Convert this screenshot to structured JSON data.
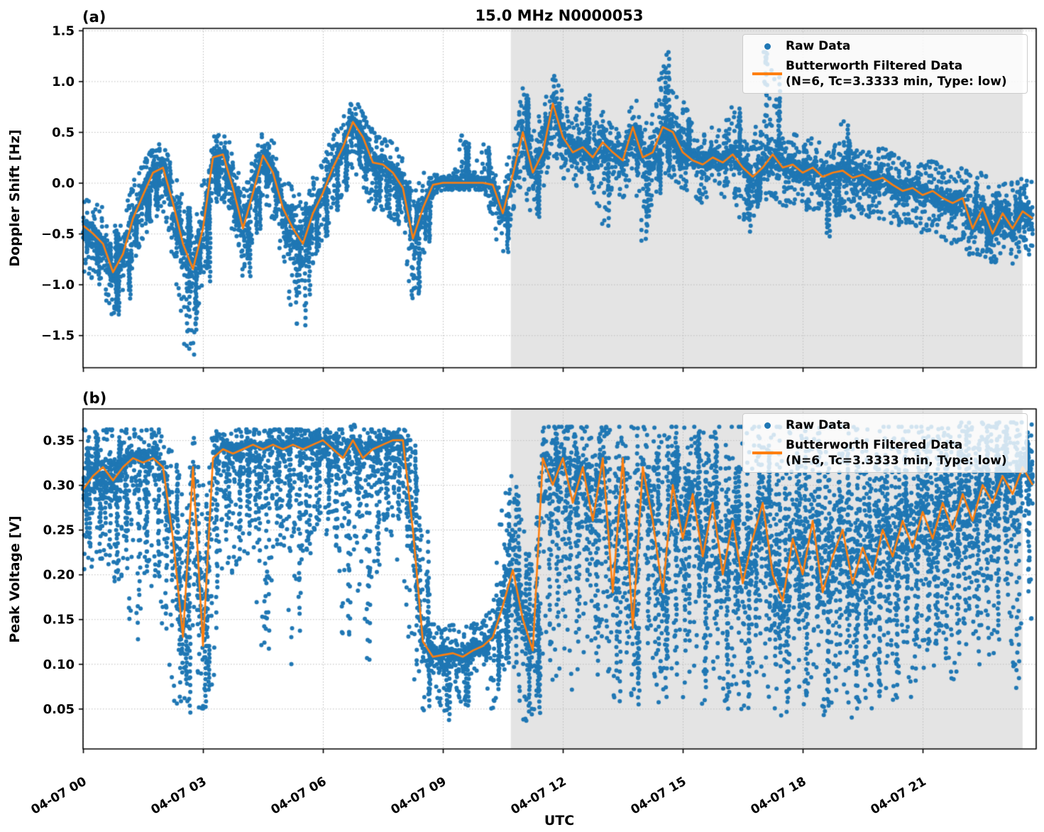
{
  "figure": {
    "title": "15.0 MHz N0000053",
    "xlabel": "UTC",
    "panel_a": {
      "label": "(a)",
      "ylabel": "Doppler Shift [Hz]"
    },
    "panel_b": {
      "label": "(b)",
      "ylabel": "Peak Voltage [V]"
    }
  },
  "legend": {
    "raw_label": "Raw Data",
    "filtered_label_line1": "Butterworth Filtered Data",
    "filtered_label_line2": "(N=6, Tc=3.3333 min, Type: low)"
  },
  "colors": {
    "raw": "#1f77b4",
    "filtered": "#ff7f0e",
    "shaded_region": "#e4e4e4",
    "grid": "#bdbdbd",
    "spine": "#000000"
  },
  "chart_data": [
    {
      "type": "scatter",
      "panel": "(a)",
      "title": "15.0 MHz N0000053",
      "ylabel": "Doppler Shift [Hz]",
      "xlabel": "UTC",
      "ylim": [
        -1.82,
        1.52
      ],
      "xlim_hours": [
        0,
        23.84
      ],
      "grid": true,
      "legend_position": "upper right",
      "xticks": {
        "hours": [
          0,
          3,
          6,
          9,
          12,
          15,
          18,
          21
        ],
        "labels": [
          "04-07 00",
          "04-07 03",
          "04-07 06",
          "04-07 09",
          "04-07 12",
          "04-07 15",
          "04-07 18",
          "04-07 21"
        ]
      },
      "yticks": {
        "values": [
          1.5,
          1.0,
          0.5,
          0.0,
          -0.5,
          -1.0,
          -1.5
        ],
        "labels": [
          "1.5",
          "1.0",
          "0.5",
          "0.0",
          "−0.5",
          "−1.0",
          "−1.5"
        ]
      },
      "shaded_region_hours": [
        10.7,
        23.5
      ],
      "x_hours": {
        "start": 0,
        "step": 0.25,
        "count": 96
      },
      "series": [
        {
          "name": "Raw Data",
          "style": "scatter",
          "color": "#1f77b4",
          "envelope_low": [
            -0.85,
            -0.95,
            -1.05,
            -1.3,
            -1.15,
            -0.8,
            -0.55,
            -0.35,
            -0.3,
            -0.7,
            -1.55,
            -1.7,
            -1.0,
            -0.2,
            -0.15,
            -0.5,
            -0.95,
            -0.55,
            -0.15,
            -0.35,
            -0.75,
            -1.35,
            -1.45,
            -0.8,
            -0.55,
            -0.3,
            -0.1,
            0.15,
            0.0,
            -0.25,
            -0.3,
            -0.35,
            -0.5,
            -1.2,
            -0.7,
            -0.12,
            -0.07,
            -0.07,
            -0.07,
            -0.07,
            -0.07,
            -0.4,
            -0.75,
            -0.3,
            0.05,
            -0.4,
            -0.05,
            0.3,
            0.05,
            -0.05,
            0.0,
            -0.1,
            -0.45,
            -0.05,
            -0.15,
            0.1,
            -0.75,
            -0.15,
            0.1,
            0.05,
            -0.05,
            -0.15,
            -0.2,
            -0.1,
            -0.15,
            -0.1,
            -0.5,
            -0.35,
            -0.2,
            -0.1,
            -0.25,
            -0.2,
            -0.3,
            -0.25,
            -0.55,
            -0.35,
            -0.25,
            -0.35,
            -0.3,
            -0.35,
            -0.35,
            -0.4,
            -0.45,
            -0.4,
            -0.5,
            -0.45,
            -0.55,
            -0.6,
            -0.55,
            -0.8,
            -0.7,
            -0.85,
            -0.65,
            -0.8,
            -0.65,
            -0.75
          ],
          "envelope_high": [
            -0.15,
            -0.2,
            -0.25,
            -0.45,
            -0.3,
            0.0,
            0.2,
            0.35,
            0.4,
            0.15,
            -0.15,
            -0.4,
            0.0,
            0.45,
            0.5,
            0.3,
            -0.05,
            0.25,
            0.5,
            0.4,
            0.1,
            -0.05,
            -0.15,
            0.05,
            0.2,
            0.45,
            0.6,
            0.85,
            0.7,
            0.5,
            0.45,
            0.4,
            0.25,
            -0.1,
            0.1,
            0.08,
            0.07,
            0.07,
            0.55,
            0.07,
            0.45,
            0.1,
            0.05,
            0.4,
            1.0,
            0.45,
            0.75,
            1.1,
            0.85,
            0.6,
            0.95,
            0.55,
            0.75,
            0.6,
            0.5,
            0.9,
            0.55,
            0.7,
            1.38,
            0.9,
            0.85,
            0.6,
            0.45,
            0.55,
            0.5,
            0.75,
            0.45,
            0.35,
            1.36,
            1.05,
            0.45,
            0.5,
            0.4,
            0.45,
            0.35,
            0.3,
            0.65,
            0.3,
            0.35,
            0.3,
            0.35,
            0.28,
            0.22,
            0.25,
            0.18,
            0.22,
            0.15,
            0.1,
            0.15,
            0.05,
            0.1,
            0.0,
            0.05,
            0.0,
            0.05,
            0.0
          ]
        },
        {
          "name": "Butterworth Filtered Data (N=6, Tc=3.3333 min, Type: low)",
          "style": "line",
          "color": "#ff7f0e",
          "values": [
            -0.42,
            -0.5,
            -0.6,
            -0.88,
            -0.7,
            -0.35,
            -0.12,
            0.1,
            0.15,
            -0.2,
            -0.6,
            -0.85,
            -0.45,
            0.25,
            0.28,
            -0.05,
            -0.45,
            -0.1,
            0.27,
            0.1,
            -0.25,
            -0.45,
            -0.6,
            -0.3,
            -0.1,
            0.15,
            0.35,
            0.6,
            0.45,
            0.2,
            0.18,
            0.1,
            -0.05,
            -0.55,
            -0.25,
            -0.02,
            0.0,
            0.0,
            0.0,
            0.0,
            0.0,
            -0.02,
            -0.3,
            0.08,
            0.5,
            0.1,
            0.3,
            0.78,
            0.45,
            0.3,
            0.35,
            0.25,
            0.4,
            0.3,
            0.22,
            0.55,
            0.25,
            0.3,
            0.55,
            0.5,
            0.3,
            0.22,
            0.18,
            0.25,
            0.2,
            0.28,
            0.15,
            0.06,
            0.15,
            0.28,
            0.15,
            0.18,
            0.1,
            0.15,
            0.06,
            0.1,
            0.12,
            0.05,
            0.08,
            0.02,
            0.05,
            -0.02,
            -0.08,
            -0.05,
            -0.12,
            -0.08,
            -0.15,
            -0.2,
            -0.15,
            -0.45,
            -0.25,
            -0.5,
            -0.3,
            -0.45,
            -0.28,
            -0.35
          ]
        }
      ]
    },
    {
      "type": "scatter",
      "panel": "(b)",
      "title": "15.0 MHz N0000053",
      "ylabel": "Peak Voltage [V]",
      "xlabel": "UTC",
      "ylim": [
        0.005,
        0.385
      ],
      "xlim_hours": [
        0,
        23.84
      ],
      "grid": true,
      "legend_position": "upper right",
      "xticks": {
        "hours": [
          0,
          3,
          6,
          9,
          12,
          15,
          18,
          21
        ],
        "labels": [
          "04-07 00",
          "04-07 03",
          "04-07 06",
          "04-07 09",
          "04-07 12",
          "04-07 15",
          "04-07 18",
          "04-07 21"
        ]
      },
      "yticks": {
        "values": [
          0.35,
          0.3,
          0.25,
          0.2,
          0.15,
          0.1,
          0.05
        ],
        "labels": [
          "0.35",
          "0.30",
          "0.25",
          "0.20",
          "0.15",
          "0.10",
          "0.05"
        ]
      },
      "shaded_region_hours": [
        10.7,
        23.5
      ],
      "x_hours": {
        "start": 0,
        "step": 0.25,
        "count": 96
      },
      "series": [
        {
          "name": "Raw Data",
          "style": "scatter",
          "color": "#1f77b4",
          "envelope_low": [
            0.2,
            0.21,
            0.22,
            0.19,
            0.2,
            0.12,
            0.2,
            0.18,
            0.14,
            0.06,
            0.045,
            0.05,
            0.04,
            0.08,
            0.22,
            0.2,
            0.23,
            0.21,
            0.1,
            0.22,
            0.24,
            0.07,
            0.22,
            0.25,
            0.26,
            0.22,
            0.12,
            0.26,
            0.1,
            0.2,
            0.26,
            0.24,
            0.18,
            0.08,
            0.045,
            0.085,
            0.03,
            0.088,
            0.05,
            0.088,
            0.09,
            0.05,
            0.09,
            0.1,
            0.03,
            0.045,
            0.1,
            0.06,
            0.12,
            0.07,
            0.12,
            0.06,
            0.14,
            0.05,
            0.13,
            0.05,
            0.12,
            0.07,
            0.05,
            0.1,
            0.06,
            0.1,
            0.05,
            0.09,
            0.05,
            0.08,
            0.04,
            0.07,
            0.1,
            0.05,
            0.04,
            0.08,
            0.05,
            0.09,
            0.04,
            0.06,
            0.08,
            0.04,
            0.06,
            0.05,
            0.08,
            0.05,
            0.09,
            0.06,
            0.1,
            0.07,
            0.11,
            0.08,
            0.12,
            0.09,
            0.14,
            0.1,
            0.15,
            0.07,
            0.17,
            0.15
          ],
          "envelope_high": [
            0.362,
            0.362,
            0.362,
            0.362,
            0.362,
            0.362,
            0.362,
            0.362,
            0.362,
            0.33,
            0.3,
            0.36,
            0.3,
            0.36,
            0.362,
            0.362,
            0.362,
            0.362,
            0.362,
            0.362,
            0.362,
            0.362,
            0.362,
            0.362,
            0.362,
            0.362,
            0.362,
            0.368,
            0.362,
            0.362,
            0.362,
            0.362,
            0.362,
            0.36,
            0.25,
            0.145,
            0.14,
            0.145,
            0.14,
            0.145,
            0.15,
            0.16,
            0.3,
            0.31,
            0.25,
            0.2,
            0.365,
            0.365,
            0.365,
            0.365,
            0.365,
            0.365,
            0.365,
            0.365,
            0.365,
            0.365,
            0.365,
            0.365,
            0.365,
            0.365,
            0.365,
            0.365,
            0.365,
            0.365,
            0.365,
            0.365,
            0.365,
            0.365,
            0.365,
            0.365,
            0.365,
            0.365,
            0.365,
            0.365,
            0.365,
            0.365,
            0.365,
            0.365,
            0.365,
            0.365,
            0.365,
            0.365,
            0.365,
            0.365,
            0.365,
            0.365,
            0.365,
            0.365,
            0.37,
            0.37,
            0.37,
            0.37,
            0.37,
            0.37,
            0.37,
            0.37
          ]
        },
        {
          "name": "Butterworth Filtered Data (N=6, Tc=3.3333 min, Type: low)",
          "style": "line",
          "color": "#ff7f0e",
          "values": [
            0.295,
            0.31,
            0.32,
            0.305,
            0.32,
            0.33,
            0.325,
            0.33,
            0.32,
            0.24,
            0.13,
            0.32,
            0.12,
            0.33,
            0.34,
            0.335,
            0.34,
            0.345,
            0.34,
            0.345,
            0.34,
            0.345,
            0.34,
            0.345,
            0.35,
            0.34,
            0.33,
            0.35,
            0.33,
            0.34,
            0.345,
            0.35,
            0.35,
            0.25,
            0.125,
            0.108,
            0.11,
            0.112,
            0.108,
            0.115,
            0.12,
            0.13,
            0.165,
            0.205,
            0.15,
            0.115,
            0.33,
            0.3,
            0.33,
            0.28,
            0.32,
            0.26,
            0.33,
            0.18,
            0.33,
            0.14,
            0.32,
            0.26,
            0.18,
            0.3,
            0.24,
            0.29,
            0.22,
            0.28,
            0.2,
            0.26,
            0.19,
            0.24,
            0.28,
            0.2,
            0.17,
            0.24,
            0.2,
            0.26,
            0.18,
            0.22,
            0.25,
            0.19,
            0.23,
            0.2,
            0.25,
            0.22,
            0.26,
            0.23,
            0.27,
            0.24,
            0.28,
            0.25,
            0.29,
            0.26,
            0.3,
            0.28,
            0.31,
            0.29,
            0.32,
            0.3
          ]
        }
      ]
    }
  ]
}
